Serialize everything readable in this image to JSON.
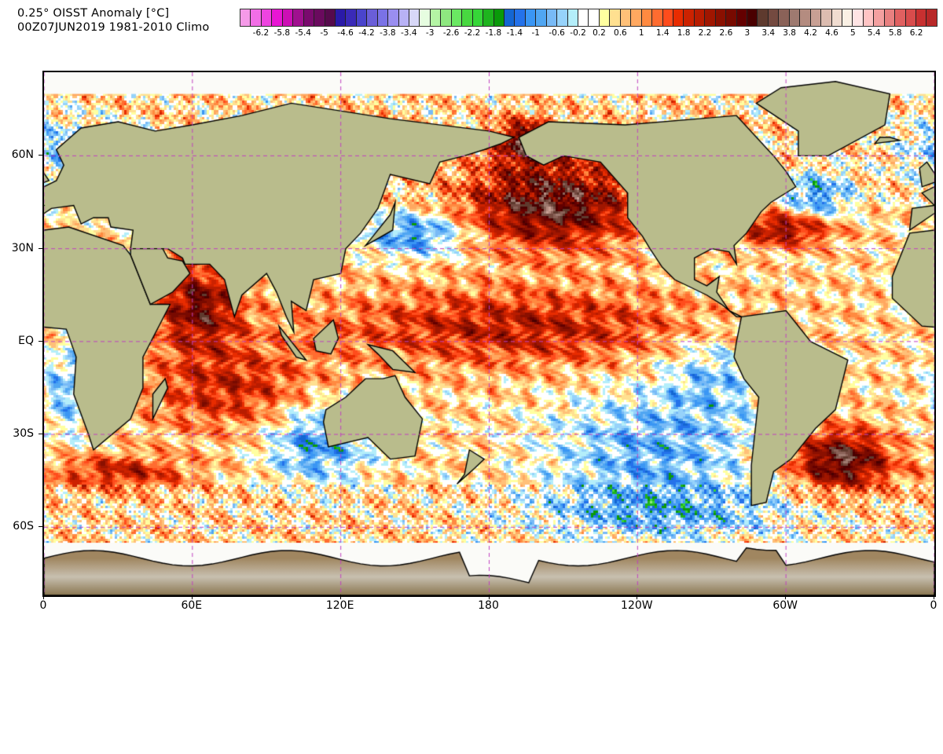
{
  "title": {
    "line1": "0.25° OISST Anomaly [°C]",
    "line2": "00Z07JUN2019 1981-2010 Climo"
  },
  "colorbar": {
    "units": "°C",
    "labels": [
      "-6.2",
      "-5.8",
      "-5.4",
      "-5",
      "-4.6",
      "-4.2",
      "-3.8",
      "-3.4",
      "-3",
      "-2.6",
      "-2.2",
      "-1.8",
      "-1.4",
      "-1",
      "-0.6",
      "-0.2",
      "0.2",
      "0.6",
      "1",
      "1.4",
      "1.8",
      "2.2",
      "2.6",
      "3",
      "3.4",
      "3.8",
      "4.2",
      "4.6",
      "5",
      "5.4",
      "5.8",
      "6.2"
    ],
    "colors": [
      "#f59ae8",
      "#f26ee6",
      "#ee44e0",
      "#e815d4",
      "#cc0fb5",
      "#a0108f",
      "#7a0a6e",
      "#6a0a5e",
      "#560a4c",
      "#2a1aa8",
      "#3a2ab8",
      "#4a44cc",
      "#6a5ed8",
      "#7a72e6",
      "#9a8ef0",
      "#b8b2f5",
      "#d8d8f8",
      "#e6fde0",
      "#b4f4a4",
      "#8ee880",
      "#6ae862",
      "#48d840",
      "#36d638",
      "#1eb41e",
      "#0a9a0a",
      "#1466d2",
      "#2472ea",
      "#3a96f4",
      "#50a6f2",
      "#78baf6",
      "#96d2fa",
      "#b4eefa",
      "#ffffff",
      "#ffffff",
      "#ffffa0",
      "#ffe090",
      "#ffc078",
      "#ffa860",
      "#ff8a40",
      "#ff6c30",
      "#ff4c1c",
      "#e82c00",
      "#cc2200",
      "#b81c00",
      "#a01600",
      "#8a1000",
      "#780a00",
      "#640000",
      "#4a0000",
      "#5e3a2e",
      "#744a40",
      "#8a6258",
      "#9e7a70",
      "#b48c80",
      "#c8a094",
      "#dcbcb0",
      "#f0dcd0",
      "#faf0e4",
      "#ffe4e4",
      "#ffc4c4",
      "#f4a0a0",
      "#e88080",
      "#e06060",
      "#d84c4c",
      "#c83030",
      "#b82828"
    ]
  },
  "map": {
    "projection": "cylindrical equidistant",
    "lon_range": [
      0,
      360
    ],
    "lat_range": [
      -82,
      87
    ],
    "lat_labels": [
      {
        "value": 60,
        "label": "60N"
      },
      {
        "value": 30,
        "label": "30N"
      },
      {
        "value": 0,
        "label": "EQ"
      },
      {
        "value": -30,
        "label": "30S"
      },
      {
        "value": -60,
        "label": "60S"
      }
    ],
    "lon_labels": [
      {
        "value": 0,
        "label": "0"
      },
      {
        "value": 60,
        "label": "60E"
      },
      {
        "value": 120,
        "label": "120E"
      },
      {
        "value": 180,
        "label": "180"
      },
      {
        "value": 240,
        "label": "120W"
      },
      {
        "value": 300,
        "label": "60W"
      },
      {
        "value": 360,
        "label": "0"
      }
    ],
    "gridline_color": "#c040c0",
    "land_color": "#b9bc8c",
    "ice_color": "#ffffff"
  }
}
